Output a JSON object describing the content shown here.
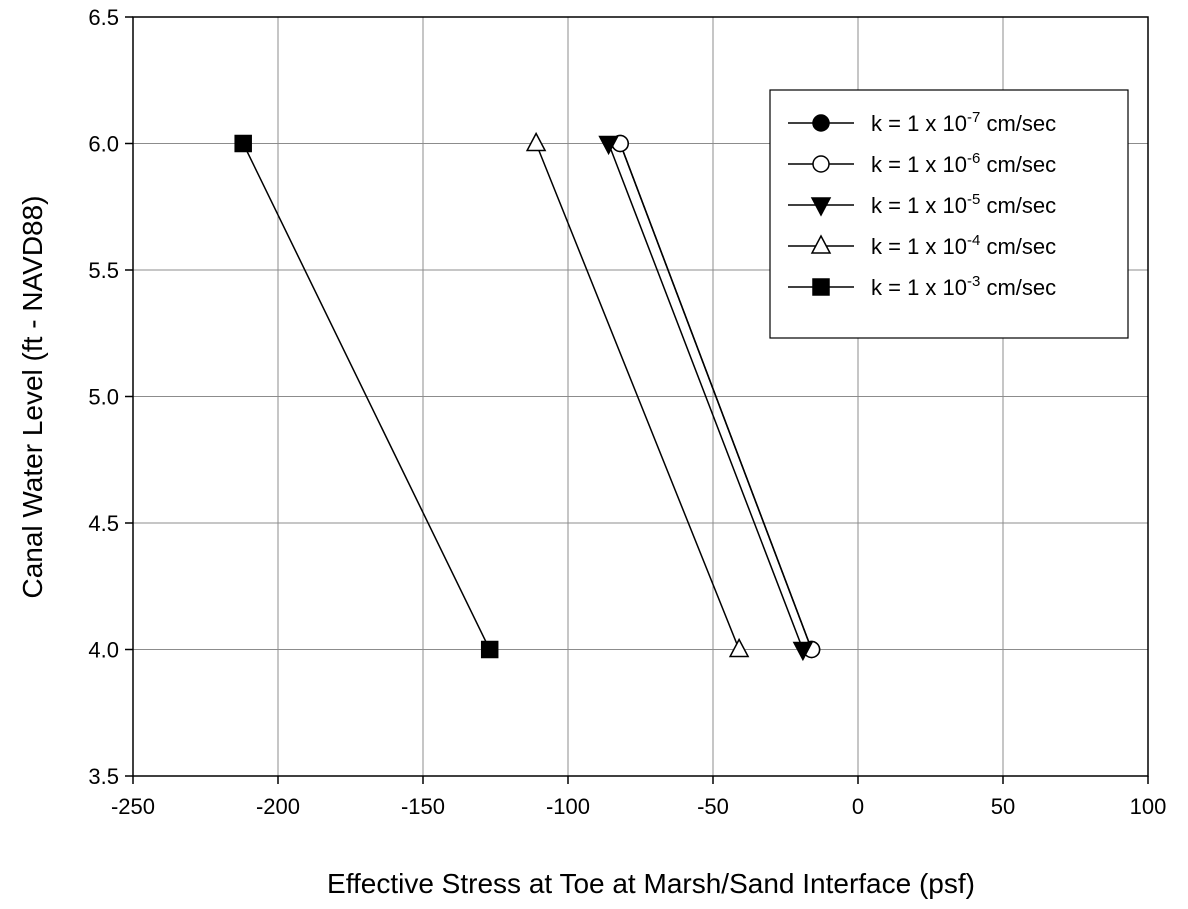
{
  "chart_data": {
    "type": "line",
    "title": "",
    "xlabel": "Effective Stress at Toe at Marsh/Sand Interface (psf)",
    "ylabel": "Canal Water Level (ft - NAVD88)",
    "xlim": [
      -250,
      100
    ],
    "ylim": [
      3.5,
      6.5
    ],
    "xticks": [
      -250,
      -200,
      -150,
      -100,
      -50,
      0,
      50,
      100
    ],
    "yticks": [
      3.5,
      4.0,
      4.5,
      5.0,
      5.5,
      6.0,
      6.5
    ],
    "xtick_labels": [
      "-250",
      "-200",
      "-150",
      "-100",
      "-50",
      "0",
      "50",
      "100"
    ],
    "ytick_labels": [
      "3.5",
      "4.0",
      "4.5",
      "5.0",
      "5.5",
      "6.0",
      "6.5"
    ],
    "grid": true,
    "legend_position": "top-right",
    "series": [
      {
        "name": "k = 1 x 10-7 cm/sec",
        "label_prefix": "k = 1 x 10",
        "label_exp": "-7",
        "label_suffix": " cm/sec",
        "marker": "circle-filled",
        "color": "#000000",
        "points": [
          {
            "x": -82,
            "y": 6.0
          },
          {
            "x": -16,
            "y": 4.0
          }
        ]
      },
      {
        "name": "k = 1 x 10-6 cm/sec",
        "label_prefix": "k = 1 x 10",
        "label_exp": "-6",
        "label_suffix": " cm/sec",
        "marker": "circle-open",
        "color": "#000000",
        "points": [
          {
            "x": -82,
            "y": 6.0
          },
          {
            "x": -16,
            "y": 4.0
          }
        ]
      },
      {
        "name": "k = 1 x 10-5 cm/sec",
        "label_prefix": "k = 1 x 10",
        "label_exp": "-5",
        "label_suffix": " cm/sec",
        "marker": "triangle-down-filled",
        "color": "#000000",
        "points": [
          {
            "x": -86,
            "y": 6.0
          },
          {
            "x": -19,
            "y": 4.0
          }
        ]
      },
      {
        "name": "k = 1 x 10-4 cm/sec",
        "label_prefix": "k = 1 x 10",
        "label_exp": "-4",
        "label_suffix": " cm/sec",
        "marker": "triangle-up-open",
        "color": "#000000",
        "points": [
          {
            "x": -111,
            "y": 6.0
          },
          {
            "x": -41,
            "y": 4.0
          }
        ]
      },
      {
        "name": "k = 1 x 10-3 cm/sec",
        "label_prefix": "k = 1 x 10",
        "label_exp": "-3",
        "label_suffix": " cm/sec",
        "marker": "square-filled",
        "color": "#000000",
        "points": [
          {
            "x": -212,
            "y": 6.0
          },
          {
            "x": -127,
            "y": 4.0
          }
        ]
      }
    ]
  }
}
